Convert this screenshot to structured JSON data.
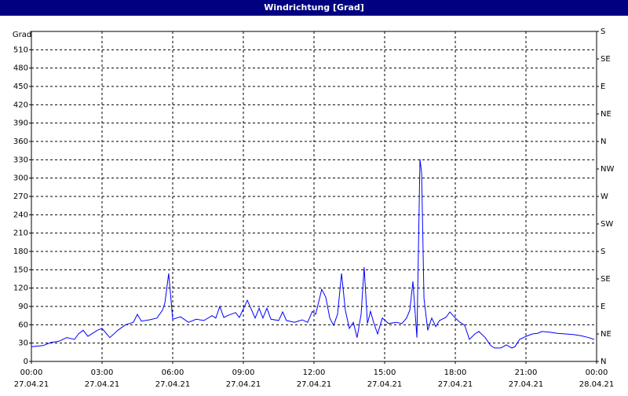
{
  "chart_data": {
    "type": "line",
    "title": "Windrichtung [Grad]",
    "ylabel": "Grad",
    "xlim": [
      0,
      24
    ],
    "xticks": [
      {
        "value": 0,
        "label": "00:00",
        "date": "27.04.21"
      },
      {
        "value": 3,
        "label": "03:00",
        "date": "27.04.21"
      },
      {
        "value": 6,
        "label": "06:00",
        "date": "27.04.21"
      },
      {
        "value": 9,
        "label": "09:00",
        "date": "27.04.21"
      },
      {
        "value": 12,
        "label": "12:00",
        "date": "27.04.21"
      },
      {
        "value": 15,
        "label": "15:00",
        "date": "27.04.21"
      },
      {
        "value": 18,
        "label": "18:00",
        "date": "27.04.21"
      },
      {
        "value": 21,
        "label": "21:00",
        "date": "27.04.21"
      },
      {
        "value": 24,
        "label": "00:00",
        "date": "28.04.21"
      }
    ],
    "ylim": [
      0,
      540
    ],
    "yticks": [
      0,
      30,
      60,
      90,
      120,
      150,
      180,
      210,
      240,
      270,
      300,
      330,
      360,
      390,
      420,
      450,
      480,
      510
    ],
    "y2lim": [
      0,
      540
    ],
    "y2ticks": [
      {
        "value": 0,
        "label": "N"
      },
      {
        "value": 45,
        "label": "NE"
      },
      {
        "value": 90,
        "label": "E"
      },
      {
        "value": 135,
        "label": "SE"
      },
      {
        "value": 180,
        "label": "S"
      },
      {
        "value": 225,
        "label": "SW"
      },
      {
        "value": 270,
        "label": "W"
      },
      {
        "value": 315,
        "label": "NW"
      },
      {
        "value": 360,
        "label": "N"
      },
      {
        "value": 405,
        "label": "NE"
      },
      {
        "value": 450,
        "label": "E"
      },
      {
        "value": 495,
        "label": "SE"
      },
      {
        "value": 540,
        "label": "S"
      }
    ],
    "grid": true,
    "x": [
      0,
      0.5,
      0.83,
      1.17,
      1.5,
      1.83,
      2,
      2.2,
      2.4,
      2.6,
      2.8,
      3,
      3.33,
      3.67,
      4,
      4.33,
      4.5,
      4.67,
      5,
      5.33,
      5.57,
      5.67,
      5.83,
      6,
      6.33,
      6.67,
      7,
      7.33,
      7.67,
      7.83,
      8,
      8.17,
      8.33,
      8.67,
      8.83,
      9.17,
      9.5,
      9.67,
      9.83,
      10,
      10.17,
      10.5,
      10.67,
      10.83,
      11.17,
      11.5,
      11.73,
      11.93,
      12.07,
      12.33,
      12.5,
      12.67,
      12.83,
      13,
      13.17,
      13.33,
      13.5,
      13.67,
      13.83,
      14,
      14.13,
      14.27,
      14.4,
      14.53,
      14.7,
      14.9,
      15.17,
      15.5,
      15.73,
      15.93,
      16.07,
      16.2,
      16.37,
      16.5,
      16.57,
      16.67,
      16.83,
      17,
      17.17,
      17.33,
      17.6,
      17.77,
      18,
      18.2,
      18.4,
      18.6,
      18.83,
      19,
      19.27,
      19.5,
      19.67,
      19.93,
      20.17,
      20.4,
      20.53,
      20.73,
      21,
      21.27,
      21.5,
      21.67,
      22,
      22.33,
      22.67,
      23,
      23.33,
      23.67,
      23.9
    ],
    "series": [
      {
        "name": "Windrichtung",
        "color": "#0000ff",
        "values": [
          24,
          26,
          31,
          33,
          39,
          36,
          45,
          51,
          41,
          46,
          51,
          54,
          39,
          51,
          60,
          64,
          77,
          66,
          68,
          71,
          84,
          96,
          144,
          69,
          73,
          64,
          69,
          67,
          75,
          71,
          90,
          72,
          75,
          80,
          72,
          100,
          71,
          87,
          71,
          87,
          69,
          67,
          81,
          67,
          64,
          68,
          64,
          82,
          77,
          118,
          105,
          71,
          59,
          77,
          144,
          84,
          54,
          64,
          39,
          77,
          154,
          62,
          82,
          64,
          45,
          71,
          62,
          64,
          62,
          71,
          84,
          131,
          39,
          331,
          308,
          103,
          51,
          71,
          57,
          67,
          72,
          81,
          71,
          64,
          59,
          36,
          45,
          49,
          39,
          26,
          22,
          22,
          27,
          22,
          24,
          36,
          41,
          45,
          46,
          49,
          48,
          46,
          45,
          44,
          42,
          39,
          36
        ]
      }
    ]
  }
}
